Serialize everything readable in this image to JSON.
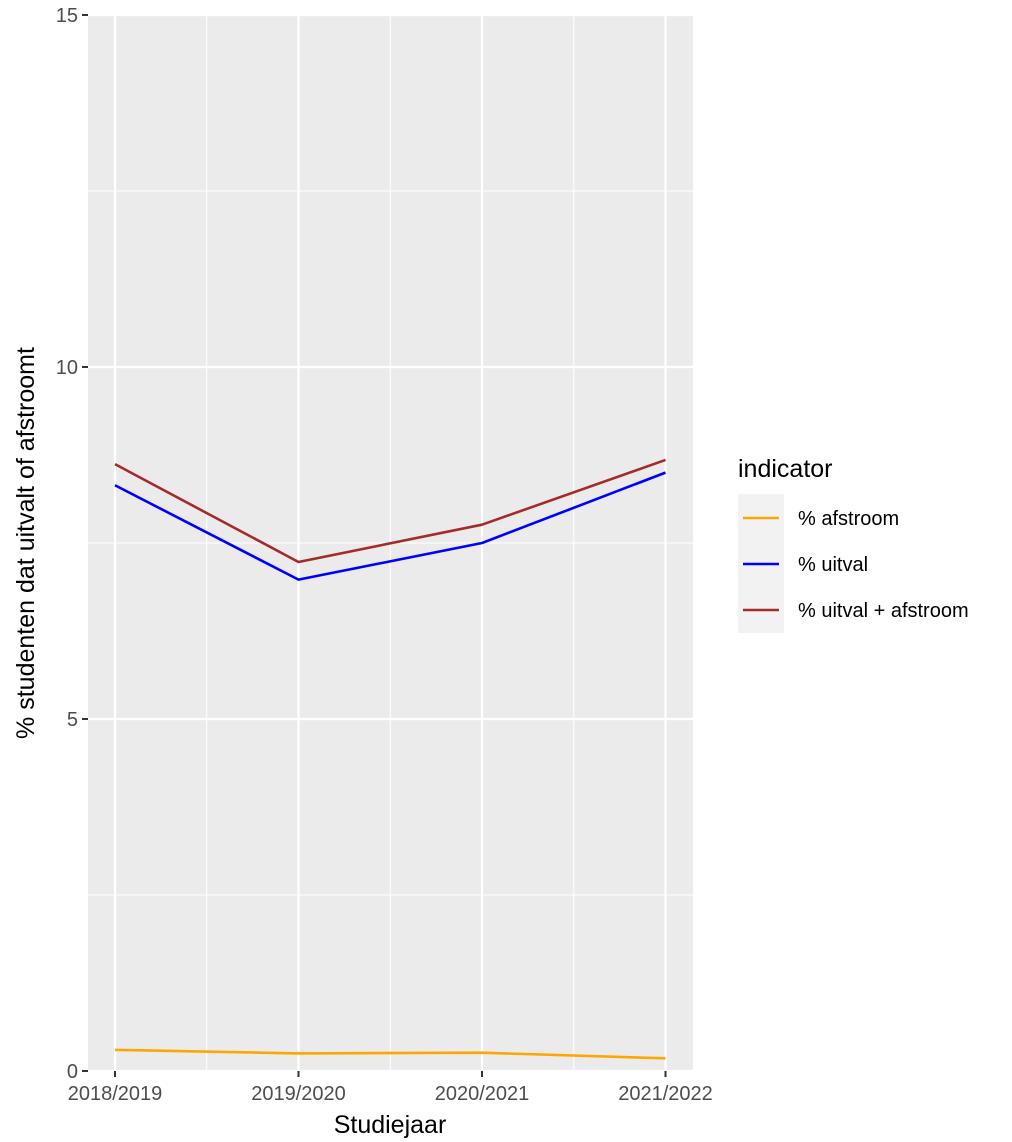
{
  "chart_data": {
    "type": "line",
    "title": "",
    "xlabel": "Studiejaar",
    "ylabel": "% studenten dat uitvalt of afstroomt",
    "categories": [
      "2018/2019",
      "2019/2020",
      "2020/2021",
      "2021/2022"
    ],
    "ylim": [
      0,
      15
    ],
    "yticks": [
      "0",
      "5",
      "10",
      "15"
    ],
    "grid": true,
    "legend": {
      "title": "indicator",
      "placement": "right"
    },
    "series": [
      {
        "name": "% afstroom",
        "color": "#FFA500",
        "values": [
          0.3,
          0.25,
          0.26,
          0.18
        ]
      },
      {
        "name": "% uitval",
        "color": "#0000FF",
        "values": [
          8.32,
          6.98,
          7.5,
          8.5
        ]
      },
      {
        "name": "% uitval + afstroom",
        "color": "#A52A2A",
        "values": [
          8.62,
          7.23,
          7.76,
          8.68
        ]
      }
    ]
  }
}
